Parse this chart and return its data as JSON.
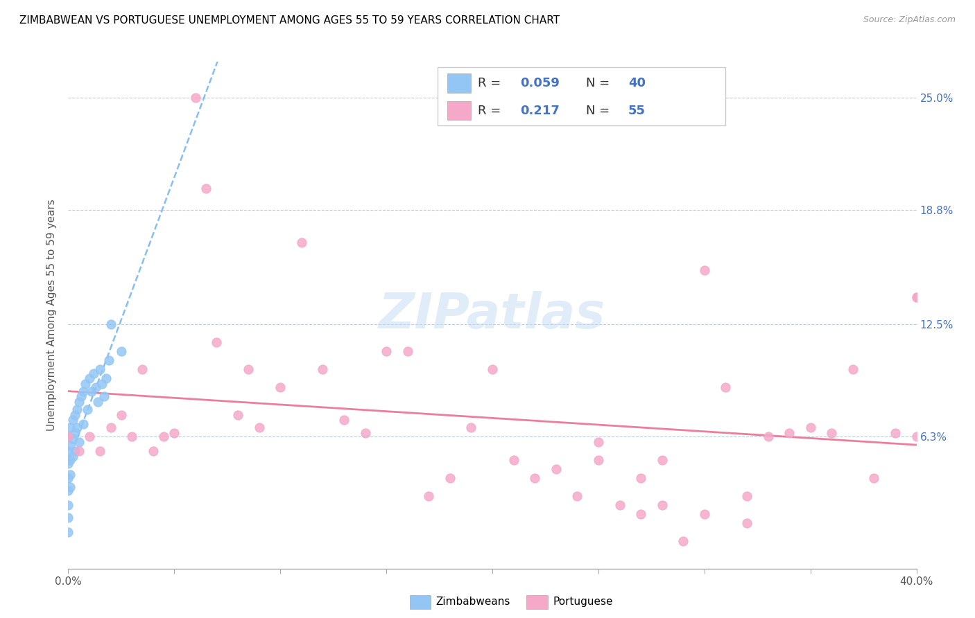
{
  "title": "ZIMBABWEAN VS PORTUGUESE UNEMPLOYMENT AMONG AGES 55 TO 59 YEARS CORRELATION CHART",
  "source": "Source: ZipAtlas.com",
  "ylabel": "Unemployment Among Ages 55 to 59 years",
  "xlim": [
    0.0,
    0.4
  ],
  "ylim": [
    -0.01,
    0.27
  ],
  "yticks_right": [
    0.063,
    0.125,
    0.188,
    0.25
  ],
  "yticklabels_right": [
    "6.3%",
    "12.5%",
    "18.8%",
    "25.0%"
  ],
  "blue_color": "#93C6F5",
  "pink_color": "#F5A8C8",
  "blue_line_color": "#7AB8F0",
  "pink_line_color": "#E87090",
  "legend_color": "#4472C4",
  "zimbabwean_x": [
    0.0,
    0.0,
    0.0,
    0.0,
    0.0,
    0.0,
    0.0,
    0.0,
    0.001,
    0.001,
    0.001,
    0.001,
    0.001,
    0.002,
    0.002,
    0.002,
    0.003,
    0.003,
    0.003,
    0.004,
    0.004,
    0.005,
    0.005,
    0.006,
    0.007,
    0.007,
    0.008,
    0.009,
    0.01,
    0.011,
    0.012,
    0.013,
    0.014,
    0.015,
    0.016,
    0.017,
    0.018,
    0.019,
    0.02,
    0.025
  ],
  "zimbabwean_y": [
    0.063,
    0.055,
    0.048,
    0.04,
    0.033,
    0.025,
    0.018,
    0.01,
    0.068,
    0.058,
    0.05,
    0.042,
    0.035,
    0.072,
    0.062,
    0.052,
    0.075,
    0.065,
    0.055,
    0.078,
    0.068,
    0.082,
    0.06,
    0.085,
    0.088,
    0.07,
    0.092,
    0.078,
    0.095,
    0.088,
    0.098,
    0.09,
    0.082,
    0.1,
    0.092,
    0.085,
    0.095,
    0.105,
    0.125,
    0.11
  ],
  "portuguese_x": [
    0.0,
    0.005,
    0.01,
    0.015,
    0.02,
    0.025,
    0.03,
    0.035,
    0.04,
    0.045,
    0.05,
    0.06,
    0.065,
    0.07,
    0.08,
    0.085,
    0.09,
    0.1,
    0.11,
    0.12,
    0.13,
    0.14,
    0.15,
    0.16,
    0.17,
    0.18,
    0.19,
    0.2,
    0.21,
    0.22,
    0.23,
    0.24,
    0.25,
    0.26,
    0.27,
    0.28,
    0.29,
    0.3,
    0.31,
    0.32,
    0.33,
    0.34,
    0.35,
    0.36,
    0.37,
    0.38,
    0.39,
    0.4,
    0.4,
    0.4,
    0.25,
    0.27,
    0.28,
    0.3,
    0.32
  ],
  "portuguese_y": [
    0.063,
    0.055,
    0.063,
    0.055,
    0.068,
    0.075,
    0.063,
    0.1,
    0.055,
    0.063,
    0.065,
    0.25,
    0.2,
    0.115,
    0.075,
    0.1,
    0.068,
    0.09,
    0.17,
    0.1,
    0.072,
    0.065,
    0.11,
    0.11,
    0.03,
    0.04,
    0.068,
    0.1,
    0.05,
    0.04,
    0.045,
    0.03,
    0.05,
    0.025,
    0.02,
    0.025,
    0.005,
    0.155,
    0.09,
    0.03,
    0.063,
    0.065,
    0.068,
    0.065,
    0.1,
    0.04,
    0.065,
    0.14,
    0.14,
    0.063,
    0.06,
    0.04,
    0.05,
    0.02,
    0.015
  ]
}
